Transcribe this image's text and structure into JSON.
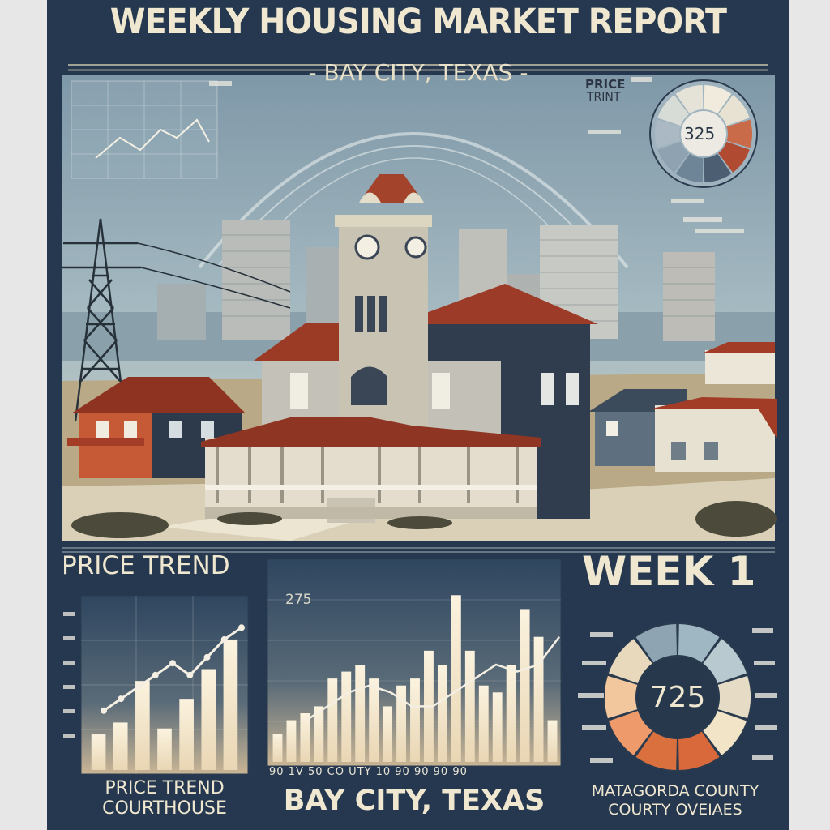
{
  "header": {
    "title": "WEEKLY HOUSING MARKET REPORT",
    "subtitle": "- BAY CITY, TEXAS -"
  },
  "scene": {
    "corner_chart_title": "PRICE",
    "corner_chart_subtitle": "TRINT",
    "corner_gauge_value": "325"
  },
  "panels": {
    "left": {
      "heading": "PRICE TREND",
      "caption_line1": "PRICE TREND",
      "caption_line2": "COURTHOUSE"
    },
    "center": {
      "value_label": "275",
      "axis_text": "90 1V 50 CO  UTY   10 90 90 90 90",
      "caption": "BAY CITY, TEXAS"
    },
    "right": {
      "heading": "WEEK 1",
      "gauge_value": "725",
      "caption_line1": "MATAGORDA COUNTY",
      "caption_line2": "COURTY OVEIAES"
    }
  },
  "colors": {
    "frame": "#25384f",
    "cream": "#efe7cf",
    "brick": "#9b3a25",
    "orange": "#d9683a",
    "slate": "#5f7891",
    "sky": "#9fb4be"
  },
  "chart_data": [
    {
      "type": "bar",
      "values": [
        3,
        4,
        7.5,
        3.5,
        6,
        8.5,
        11
      ],
      "line": [
        5,
        6,
        7,
        8,
        9,
        8,
        9.5,
        11,
        12
      ],
      "ylim": [
        0,
        14
      ]
    },
    {
      "type": "bar",
      "values": [
        2,
        3,
        3.5,
        4,
        6,
        6.5,
        7,
        6,
        4,
        5.5,
        6,
        8,
        7,
        12,
        8,
        5.5,
        5,
        7,
        11,
        9,
        3
      ],
      "line": [
        3,
        4,
        5,
        5.5,
        5,
        4,
        4,
        5,
        6,
        7,
        6.5,
        7,
        9
      ],
      "ylim": [
        0,
        14
      ]
    },
    {
      "type": "pie",
      "values": [
        1,
        1,
        1,
        1,
        1,
        1,
        1,
        1,
        1,
        1
      ]
    }
  ]
}
